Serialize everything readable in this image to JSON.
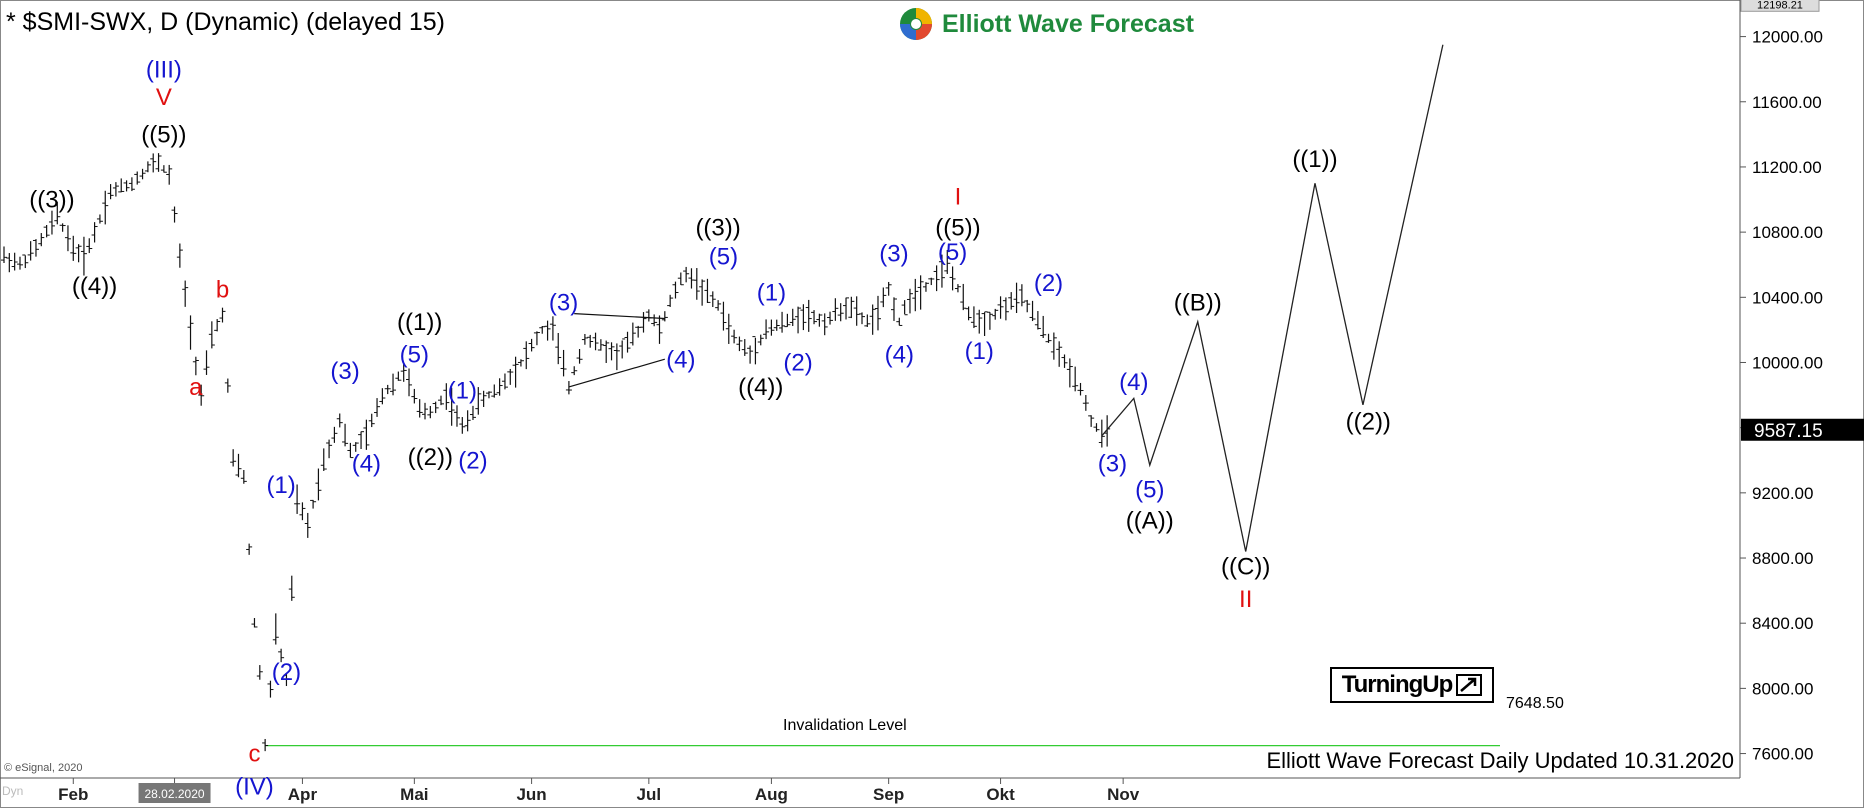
{
  "header": {
    "symbol_title": "* $SMI-SWX, D (Dynamic) (delayed 15)"
  },
  "brand": {
    "name": "Elliott Wave Forecast",
    "color": "#1f8a3c"
  },
  "footer": {
    "caption": "Elliott Wave Forecast Daily Updated 10.31.2020",
    "copyright": "© eSignal, 2020",
    "dyn": "Dyn"
  },
  "badge": {
    "label": "TurningUp"
  },
  "invalidation": {
    "label": "Invalidation Level",
    "value_text": "7648.50",
    "value": 7648.5,
    "color": "#33cc33"
  },
  "price_marker": {
    "text": "9587.15",
    "value": 9587.15,
    "bg": "#000000",
    "fg": "#ffffff"
  },
  "top_marker": {
    "text": "12198.21",
    "value": 12198.21
  },
  "chart_data": {
    "type": "ohlc-line",
    "title": "* $SMI-SWX, D (Dynamic) (delayed 15)",
    "ylim": [
      7450,
      12200
    ],
    "y_ticks": [
      {
        "v": 12000,
        "label": "12000.00"
      },
      {
        "v": 11600,
        "label": "11600.00"
      },
      {
        "v": 11200,
        "label": "11200.00"
      },
      {
        "v": 10800,
        "label": "10800.00"
      },
      {
        "v": 10400,
        "label": "10400.00"
      },
      {
        "v": 10000,
        "label": "10000.00"
      },
      {
        "v": 9600,
        "label": "9600.00"
      },
      {
        "v": 9200,
        "label": "9200.00"
      },
      {
        "v": 8800,
        "label": "8800.00"
      },
      {
        "v": 8400,
        "label": "8400.00"
      },
      {
        "v": 8000,
        "label": "8000.00"
      },
      {
        "v": 7600,
        "label": "7600.00"
      }
    ],
    "x_ticks": [
      {
        "t": 13,
        "label": "Feb"
      },
      {
        "t": 32,
        "label": "28.02.2020",
        "boxed": true
      },
      {
        "t": 56,
        "label": "Apr"
      },
      {
        "t": 77,
        "label": "Mai"
      },
      {
        "t": 99,
        "label": "Jun"
      },
      {
        "t": 121,
        "label": "Jul"
      },
      {
        "t": 144,
        "label": "Aug"
      },
      {
        "t": 166,
        "label": "Sep"
      },
      {
        "t": 187,
        "label": "Okt"
      },
      {
        "t": 210,
        "label": "Nov"
      }
    ],
    "x_range": [
      0,
      325
    ],
    "price_path": [
      [
        0,
        10650
      ],
      [
        3,
        10600
      ],
      [
        6,
        10700
      ],
      [
        10,
        10900
      ],
      [
        13,
        10700
      ],
      [
        15,
        10650
      ],
      [
        17,
        10800
      ],
      [
        20,
        11050
      ],
      [
        24,
        11100
      ],
      [
        27,
        11200
      ],
      [
        29,
        11230
      ],
      [
        31,
        11150
      ],
      [
        33,
        10650
      ],
      [
        35,
        10200
      ],
      [
        37,
        9800
      ],
      [
        39,
        10150
      ],
      [
        41,
        10300
      ],
      [
        43,
        9400
      ],
      [
        45,
        9300
      ],
      [
        47,
        8400
      ],
      [
        48,
        8100
      ],
      [
        49,
        7650
      ],
      [
        51,
        8350
      ],
      [
        53,
        8050
      ],
      [
        55,
        9150
      ],
      [
        57,
        9000
      ],
      [
        60,
        9400
      ],
      [
        63,
        9650
      ],
      [
        65,
        9450
      ],
      [
        68,
        9550
      ],
      [
        71,
        9800
      ],
      [
        75,
        9950
      ],
      [
        78,
        9700
      ],
      [
        80,
        9700
      ],
      [
        83,
        9800
      ],
      [
        86,
        9600
      ],
      [
        89,
        9750
      ],
      [
        93,
        9850
      ],
      [
        97,
        10000
      ],
      [
        101,
        10200
      ],
      [
        103,
        10200
      ],
      [
        106,
        9850
      ],
      [
        109,
        10150
      ],
      [
        112,
        10100
      ],
      [
        115,
        10050
      ],
      [
        118,
        10150
      ],
      [
        121,
        10300
      ],
      [
        123,
        10200
      ],
      [
        126,
        10450
      ],
      [
        128,
        10550
      ],
      [
        131,
        10450
      ],
      [
        134,
        10350
      ],
      [
        137,
        10150
      ],
      [
        140,
        10050
      ],
      [
        143,
        10200
      ],
      [
        147,
        10250
      ],
      [
        150,
        10300
      ],
      [
        154,
        10250
      ],
      [
        158,
        10350
      ],
      [
        160,
        10300
      ],
      [
        162,
        10250
      ],
      [
        164,
        10300
      ],
      [
        166,
        10450
      ],
      [
        168,
        10250
      ],
      [
        170,
        10400
      ],
      [
        174,
        10500
      ],
      [
        177,
        10600
      ],
      [
        179,
        10450
      ],
      [
        181,
        10300
      ],
      [
        184,
        10250
      ],
      [
        188,
        10350
      ],
      [
        191,
        10400
      ],
      [
        193,
        10300
      ],
      [
        196,
        10150
      ],
      [
        199,
        10000
      ],
      [
        202,
        9850
      ],
      [
        204,
        9650
      ],
      [
        206,
        9550
      ],
      [
        208,
        9587.15
      ]
    ],
    "projection_path": [
      [
        206,
        9550
      ],
      [
        212,
        9780
      ],
      [
        215,
        9370
      ],
      [
        224,
        10250
      ],
      [
        233,
        8840
      ],
      [
        246,
        11100
      ],
      [
        255,
        9740
      ],
      [
        270,
        11950
      ]
    ],
    "triangle": [
      [
        107,
        10300
      ],
      [
        124,
        10270
      ],
      [
        106,
        9850
      ]
    ],
    "wave_labels": [
      {
        "t": 30,
        "v": 11750,
        "text": "(III)",
        "color": "#1515d0"
      },
      {
        "t": 30,
        "v": 11580,
        "text": "V",
        "color": "#e01010"
      },
      {
        "t": 30,
        "v": 11350,
        "text": "((5))",
        "color": "#000000"
      },
      {
        "t": 9,
        "v": 10950,
        "text": "((3))",
        "color": "#000000"
      },
      {
        "t": 17,
        "v": 10420,
        "text": "((4))",
        "color": "#000000"
      },
      {
        "t": 41,
        "v": 10400,
        "text": "b",
        "color": "#e01010"
      },
      {
        "t": 36,
        "v": 9800,
        "text": "a",
        "color": "#e01010"
      },
      {
        "t": 52,
        "v": 9200,
        "text": "(1)",
        "color": "#1515d0"
      },
      {
        "t": 53,
        "v": 8050,
        "text": "(2)",
        "color": "#1515d0"
      },
      {
        "t": 47,
        "v": 7550,
        "text": "c",
        "color": "#e01010"
      },
      {
        "t": 47,
        "v": 7350,
        "text": "(IV)",
        "color": "#1515d0"
      },
      {
        "t": 64,
        "v": 9900,
        "text": "(3)",
        "color": "#1515d0"
      },
      {
        "t": 68,
        "v": 9330,
        "text": "(4)",
        "color": "#1515d0"
      },
      {
        "t": 78,
        "v": 10200,
        "text": "((1))",
        "color": "#000000"
      },
      {
        "t": 77,
        "v": 10000,
        "text": "(5)",
        "color": "#1515d0"
      },
      {
        "t": 80,
        "v": 9370,
        "text": "((2))",
        "color": "#000000"
      },
      {
        "t": 86,
        "v": 9780,
        "text": "(1)",
        "color": "#1515d0"
      },
      {
        "t": 88,
        "v": 9350,
        "text": "(2)",
        "color": "#1515d0"
      },
      {
        "t": 105,
        "v": 10320,
        "text": "(3)",
        "color": "#1515d0"
      },
      {
        "t": 127,
        "v": 9970,
        "text": "(4)",
        "color": "#1515d0"
      },
      {
        "t": 134,
        "v": 10780,
        "text": "((3))",
        "color": "#000000"
      },
      {
        "t": 135,
        "v": 10600,
        "text": "(5)",
        "color": "#1515d0"
      },
      {
        "t": 144,
        "v": 10380,
        "text": "(1)",
        "color": "#1515d0"
      },
      {
        "t": 142,
        "v": 9800,
        "text": "((4))",
        "color": "#000000"
      },
      {
        "t": 149,
        "v": 9950,
        "text": "(2)",
        "color": "#1515d0"
      },
      {
        "t": 167,
        "v": 10620,
        "text": "(3)",
        "color": "#1515d0"
      },
      {
        "t": 168,
        "v": 10000,
        "text": "(4)",
        "color": "#1515d0"
      },
      {
        "t": 179,
        "v": 10970,
        "text": "I",
        "color": "#e01010"
      },
      {
        "t": 179,
        "v": 10780,
        "text": "((5))",
        "color": "#000000"
      },
      {
        "t": 178,
        "v": 10630,
        "text": "(5)",
        "color": "#1515d0"
      },
      {
        "t": 183,
        "v": 10020,
        "text": "(1)",
        "color": "#1515d0"
      },
      {
        "t": 196,
        "v": 10440,
        "text": "(2)",
        "color": "#1515d0"
      },
      {
        "t": 212,
        "v": 9830,
        "text": "(4)",
        "color": "#1515d0"
      },
      {
        "t": 208,
        "v": 9330,
        "text": "(3)",
        "color": "#1515d0"
      },
      {
        "t": 215,
        "v": 9170,
        "text": "(5)",
        "color": "#1515d0"
      },
      {
        "t": 215,
        "v": 8980,
        "text": "((A))",
        "color": "#000000"
      },
      {
        "t": 224,
        "v": 10320,
        "text": "((B))",
        "color": "#000000"
      },
      {
        "t": 233,
        "v": 8700,
        "text": "((C))",
        "color": "#000000"
      },
      {
        "t": 233,
        "v": 8500,
        "text": "II",
        "color": "#e01010"
      },
      {
        "t": 246,
        "v": 11200,
        "text": "((1))",
        "color": "#000000"
      },
      {
        "t": 256,
        "v": 9590,
        "text": "((2))",
        "color": "#000000"
      }
    ]
  }
}
